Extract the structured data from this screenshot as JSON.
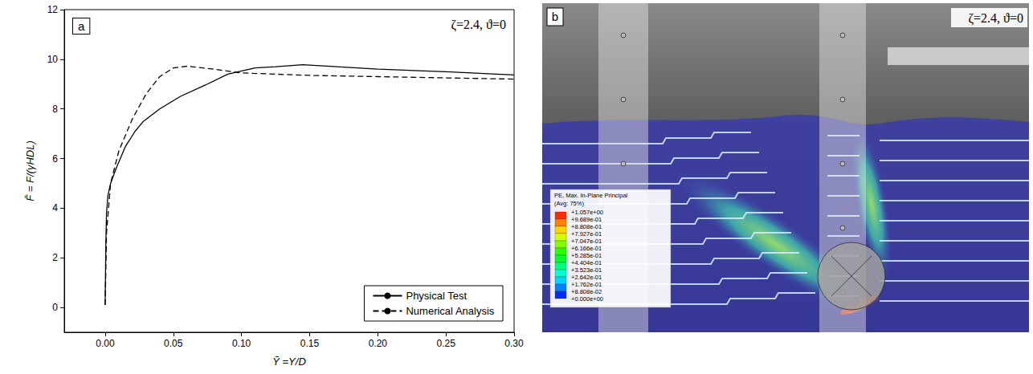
{
  "chart_data": {
    "type": "line",
    "panel_label": "a",
    "annotation": "ζ=2.4, ϑ=0",
    "x_label": "Ȳ =Y/D",
    "y_label": "F̄ = F/(γHDL)",
    "xlim": [
      -0.03,
      0.3
    ],
    "xticks": [
      {
        "value": 0,
        "label": "0.00"
      },
      {
        "value": 0.05,
        "label": "0.05"
      },
      {
        "value": 0.1,
        "label": "0.10"
      },
      {
        "value": 0.15,
        "label": "0.15"
      },
      {
        "value": 0.2,
        "label": "0.20"
      },
      {
        "value": 0.25,
        "label": "0.25"
      },
      {
        "value": 0.3,
        "label": "0.30"
      }
    ],
    "ylim": [
      -1,
      12
    ],
    "yticks": [
      0,
      2,
      4,
      6,
      8,
      10,
      12
    ],
    "grid": false,
    "legend": "lower right",
    "series": [
      {
        "name": "Physical Test",
        "color": "#000000",
        "line_style": "solid",
        "x": [
          0,
          0.0005,
          0.001,
          0.002,
          0.004,
          0.008,
          0.015,
          0.022,
          0.028,
          0.04,
          0.055,
          0.075,
          0.09,
          0.11,
          0.125,
          0.145,
          0.17,
          0.2,
          0.25,
          0.3
        ],
        "values": [
          0.1,
          2.5,
          3.8,
          4.5,
          5.0,
          5.6,
          6.5,
          7.1,
          7.5,
          8.0,
          8.5,
          9.0,
          9.4,
          9.65,
          9.7,
          9.78,
          9.7,
          9.6,
          9.5,
          9.37
        ]
      },
      {
        "name": "Numerical Analysis",
        "color": "#000000",
        "line_style": "dashed",
        "x": [
          0,
          0.0005,
          0.001,
          0.004,
          0.01,
          0.02,
          0.03,
          0.04,
          0.05,
          0.06,
          0.08,
          0.1,
          0.15,
          0.2,
          0.25,
          0.3
        ],
        "values": [
          0.1,
          1.5,
          3.0,
          5.0,
          6.3,
          7.6,
          8.6,
          9.3,
          9.65,
          9.72,
          9.6,
          9.45,
          9.35,
          9.3,
          9.25,
          9.2
        ]
      }
    ]
  },
  "image_panel": {
    "panel_label": "b",
    "annotation": "ζ=2.4, ϑ=0",
    "contour_legend": {
      "title": "PE, Max. In-Plane Principal",
      "subtitle": "(Avg: 75%)",
      "levels": [
        {
          "value": 1.057,
          "label": "+1.057e+00"
        },
        {
          "value": 0.9689,
          "label": "+9.689e-01"
        },
        {
          "value": 0.8808,
          "label": "+8.808e-01"
        },
        {
          "value": 0.7927,
          "label": "+7.927e-01"
        },
        {
          "value": 0.7047,
          "label": "+7.047e-01"
        },
        {
          "value": 0.6166,
          "label": "+6.166e-01"
        },
        {
          "value": 0.5285,
          "label": "+5.285e-01"
        },
        {
          "value": 0.4404,
          "label": "+4.404e-01"
        },
        {
          "value": 0.3523,
          "label": "+3.523e-01"
        },
        {
          "value": 0.2642,
          "label": "+2.642e-01"
        },
        {
          "value": 0.1762,
          "label": "+1.762e-01"
        },
        {
          "value": 0.08808,
          "label": "+8.808e-02"
        },
        {
          "value": 0,
          "label": "+0.000e+00"
        }
      ]
    }
  }
}
